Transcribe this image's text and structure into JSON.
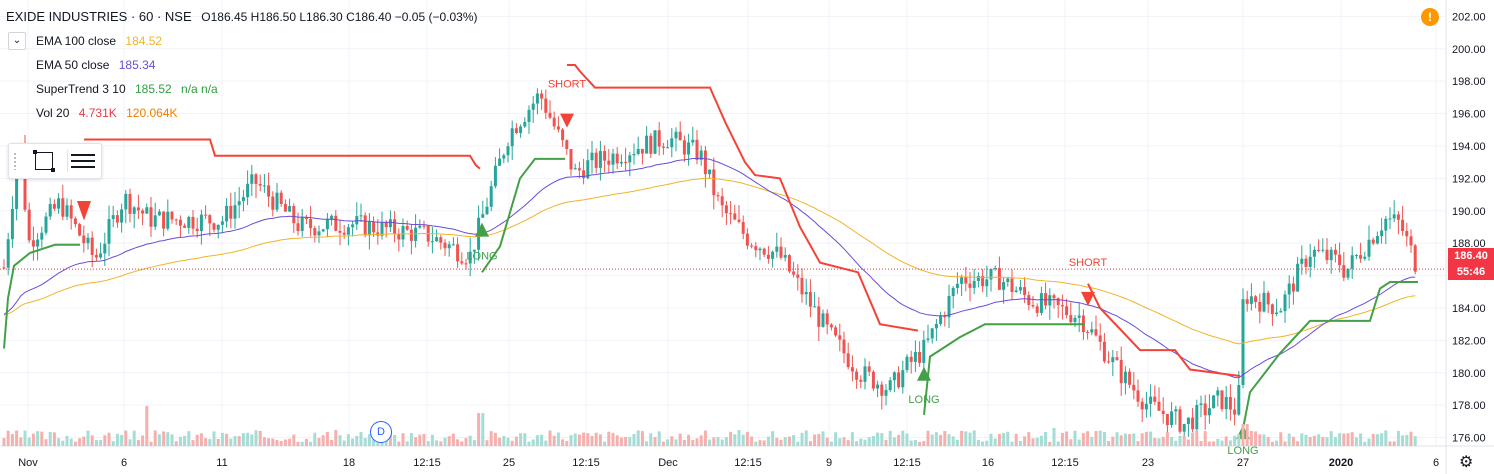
{
  "header": {
    "symbol": "EXIDE INDUSTRIES · 60 · NSE",
    "ohlc": "O186.45 H186.50 L186.30 C186.40 −0.05 (−0.03%)"
  },
  "indicators": [
    {
      "name": "EMA 100 close",
      "value": "184.52",
      "color": "#f0b429"
    },
    {
      "name": "EMA 50 close",
      "value": "185.34",
      "color": "#6a4cd6"
    },
    {
      "name": "SuperTrend 3 10",
      "value": "185.52",
      "extra": "n/a n/a",
      "color": "#2e9e3e"
    },
    {
      "name": "Vol 20",
      "value": "4.731K",
      "extra": "120.064K",
      "color": "#f23645"
    }
  ],
  "colors": {
    "up": "#26a69a",
    "down": "#ef5350",
    "st_up": "#43a047",
    "st_down": "#f44336",
    "ema50": "#6a4cd6",
    "ema100": "#f0b429",
    "last_price": "#f23645",
    "countdown": "#f23645"
  },
  "icons": [
    "chevron-down-icon",
    "rectangle-tool-icon",
    "lines-tool-icon",
    "alert-icon",
    "gear-icon"
  ],
  "last_price": "186.40",
  "countdown": "55:46",
  "event_marker": "D",
  "signals": [
    {
      "label": "LONG",
      "color": "#43a047"
    },
    {
      "label": "SHORT",
      "color": "#f44336"
    },
    {
      "label": "LONG",
      "color": "#43a047"
    },
    {
      "label": "SHORT",
      "color": "#f44336"
    },
    {
      "label": "LONG",
      "color": "#43a047"
    }
  ],
  "chart_data": {
    "type": "line",
    "title": "EXIDE INDUSTRIES · 60 · NSE",
    "y_ticks": [
      "176.00",
      "178.00",
      "180.00",
      "182.00",
      "184.00",
      "186.00",
      "188.00",
      "190.00",
      "192.00",
      "194.00",
      "196.00",
      "198.00",
      "200.00",
      "202.00"
    ],
    "ylim": [
      175.2,
      202.2
    ],
    "x_ticks": [
      "Nov",
      "6",
      "11",
      "18",
      "12:15",
      "25",
      "12:15",
      "Dec",
      "12:15",
      "9",
      "12:15",
      "16",
      "12:15",
      "23",
      "27",
      "2020",
      "6"
    ],
    "close_points": [
      {
        "x": "Nov",
        "y": 188.0
      },
      {
        "x": "6",
        "y": 190.8
      },
      {
        "x": "11",
        "y": 189.4
      },
      {
        "x": "18",
        "y": 189.2
      },
      {
        "x": "12:15",
        "y": 188.5
      },
      {
        "x": "25",
        "y": 194.8
      },
      {
        "x": "12:15",
        "y": 192.8
      },
      {
        "x": "Dec",
        "y": 194.5
      },
      {
        "x": "12:15",
        "y": 188.3
      },
      {
        "x": "9",
        "y": 182.4
      },
      {
        "x": "12:15",
        "y": 180.4
      },
      {
        "x": "16",
        "y": 185.8
      },
      {
        "x": "12:15",
        "y": 183.8
      },
      {
        "x": "23",
        "y": 178.0
      },
      {
        "x": "27",
        "y": 184.2
      },
      {
        "x": "2020",
        "y": 186.8
      },
      {
        "x": "6",
        "y": 186.4
      }
    ],
    "series": [
      {
        "name": "EMA 100 close",
        "last": 184.52
      },
      {
        "name": "EMA 50 close",
        "last": 185.34
      },
      {
        "name": "SuperTrend 3 10",
        "last": 185.52
      }
    ],
    "grid": true
  }
}
